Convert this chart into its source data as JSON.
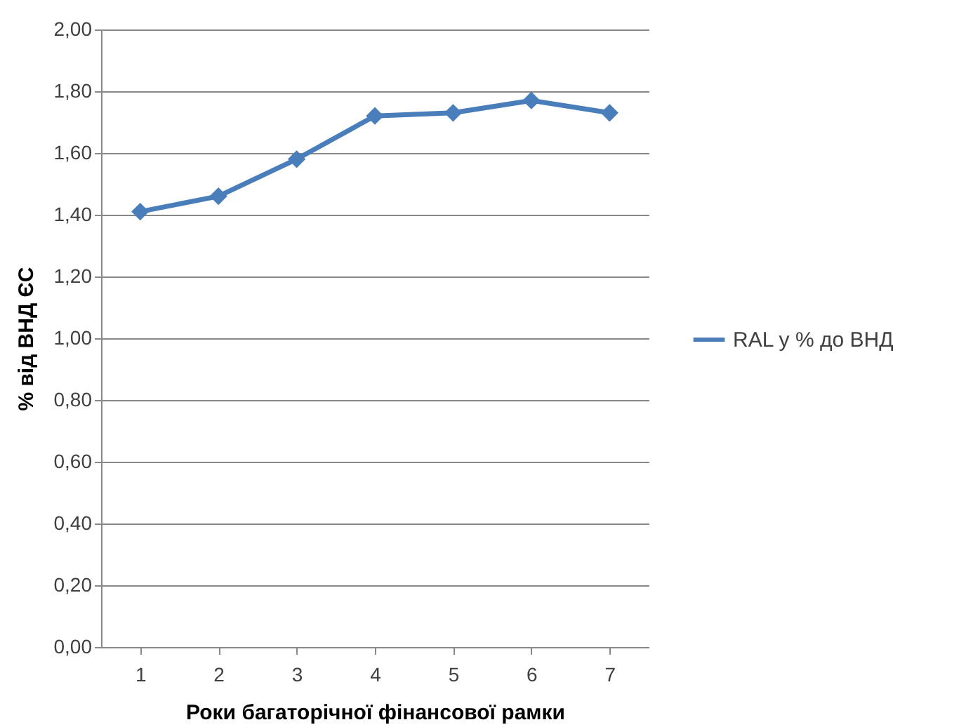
{
  "chart_data": {
    "type": "line",
    "xlabel": "Роки багаторічної фінансової рамки",
    "ylabel": "% від ВНД ЄС",
    "categories": [
      "1",
      "2",
      "3",
      "4",
      "5",
      "6",
      "7"
    ],
    "series": [
      {
        "name": "RAL у % до ВНД",
        "color": "#4a7ebb",
        "values": [
          1.41,
          1.46,
          1.58,
          1.72,
          1.73,
          1.77,
          1.73
        ]
      }
    ],
    "ylim": [
      0,
      2
    ],
    "yticks": [
      {
        "value": 0,
        "label": "0,00"
      },
      {
        "value": 0.2,
        "label": "0,20"
      },
      {
        "value": 0.4,
        "label": "0,40"
      },
      {
        "value": 0.6,
        "label": "0,60"
      },
      {
        "value": 0.8,
        "label": "0,80"
      },
      {
        "value": 1,
        "label": "1,00"
      },
      {
        "value": 1.2,
        "label": "1,20"
      },
      {
        "value": 1.4,
        "label": "1,40"
      },
      {
        "value": 1.6,
        "label": "1,60"
      },
      {
        "value": 1.8,
        "label": "1,80"
      },
      {
        "value": 2,
        "label": "2,00"
      }
    ],
    "grid": "y",
    "legend": "right",
    "marker": "diamond",
    "line_style": "solid"
  }
}
